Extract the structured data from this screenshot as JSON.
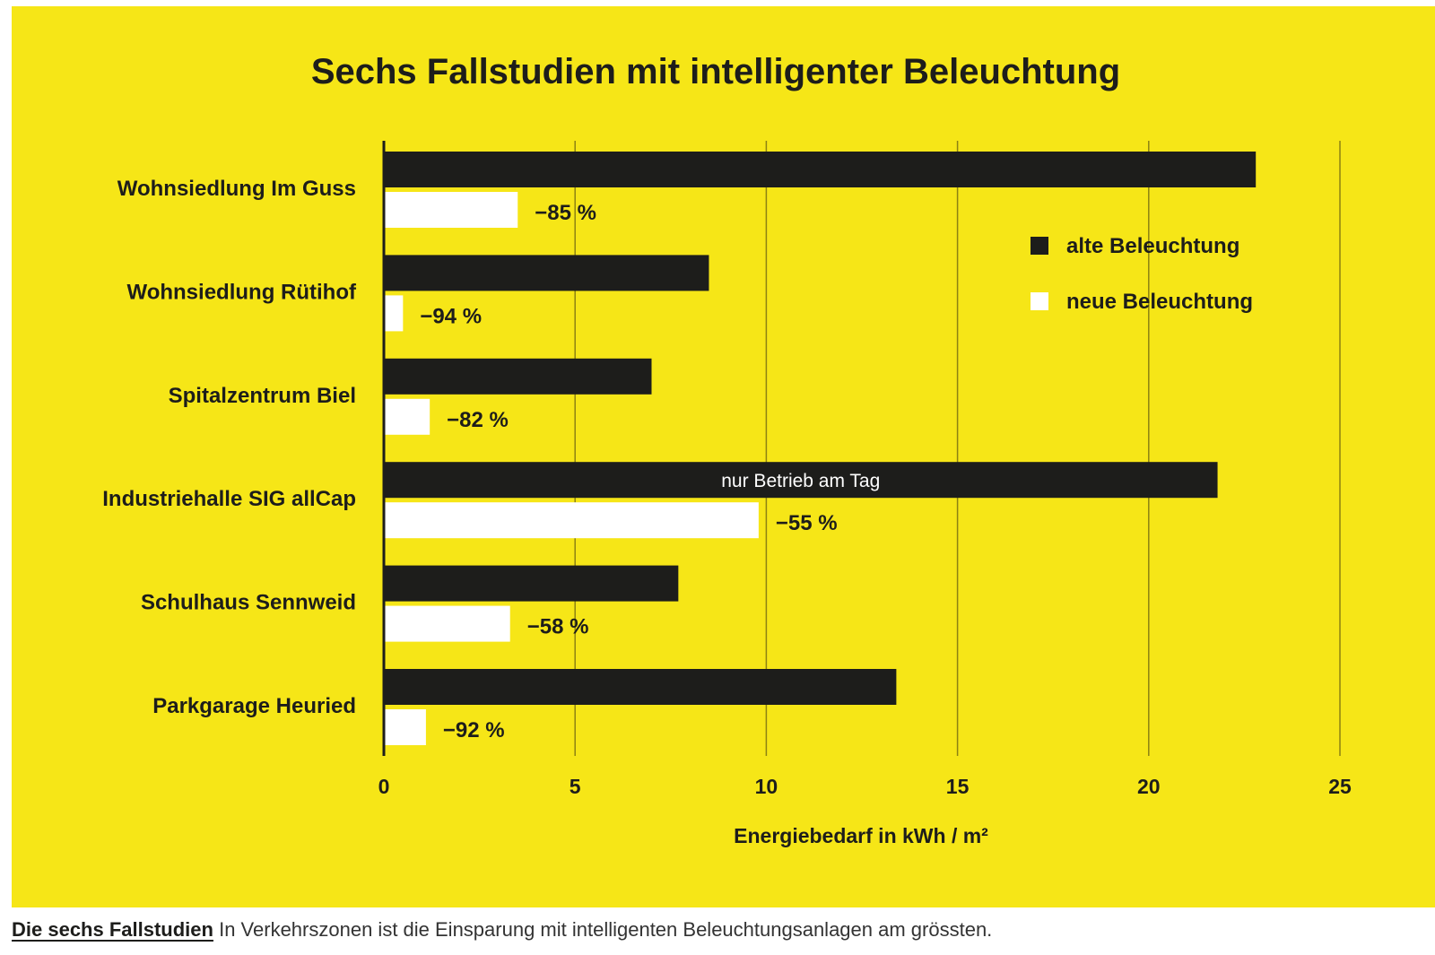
{
  "colors": {
    "background": "#f6e617",
    "old_bar": "#1d1d1b",
    "new_bar": "#ffffff",
    "text": "#1d1d1b",
    "gridline": "#8c8212"
  },
  "caption": {
    "bold": "Die sechs Fallstudien",
    "text": "In Verkehrszonen ist die Einsparung mit intelligenten Beleuchtungsanlagen am grössten."
  },
  "chart_data": {
    "type": "bar",
    "orientation": "horizontal",
    "title": "Sechs Fallstudien mit intelligenter Beleuchtung",
    "xlabel": "Energiebedarf in kWh / m²",
    "ylabel": "",
    "xlim": [
      0,
      25
    ],
    "xticks": [
      0,
      5,
      10,
      15,
      20,
      25
    ],
    "grid": true,
    "legend_position": "top-right",
    "categories": [
      "Wohnsiedlung Im Guss",
      "Wohnsiedlung Rütihof",
      "Spitalzentrum Biel",
      "Industriehalle SIG allCap",
      "Schulhaus Sennweid",
      "Parkgarage Heuried"
    ],
    "series": [
      {
        "name": "alte Beleuchtung",
        "values": [
          22.8,
          8.5,
          7.0,
          21.8,
          7.7,
          13.4
        ]
      },
      {
        "name": "neue Beleuchtung",
        "values": [
          3.5,
          0.5,
          1.2,
          9.8,
          3.3,
          1.1
        ]
      }
    ],
    "data_labels": [
      "−85 %",
      "−94 %",
      "−82 %",
      "−55 %",
      "−58 %",
      "−92 %"
    ],
    "annotations": [
      {
        "category": "Industriehalle SIG allCap",
        "series": "alte Beleuchtung",
        "text": "nur Betrieb am Tag"
      }
    ]
  }
}
